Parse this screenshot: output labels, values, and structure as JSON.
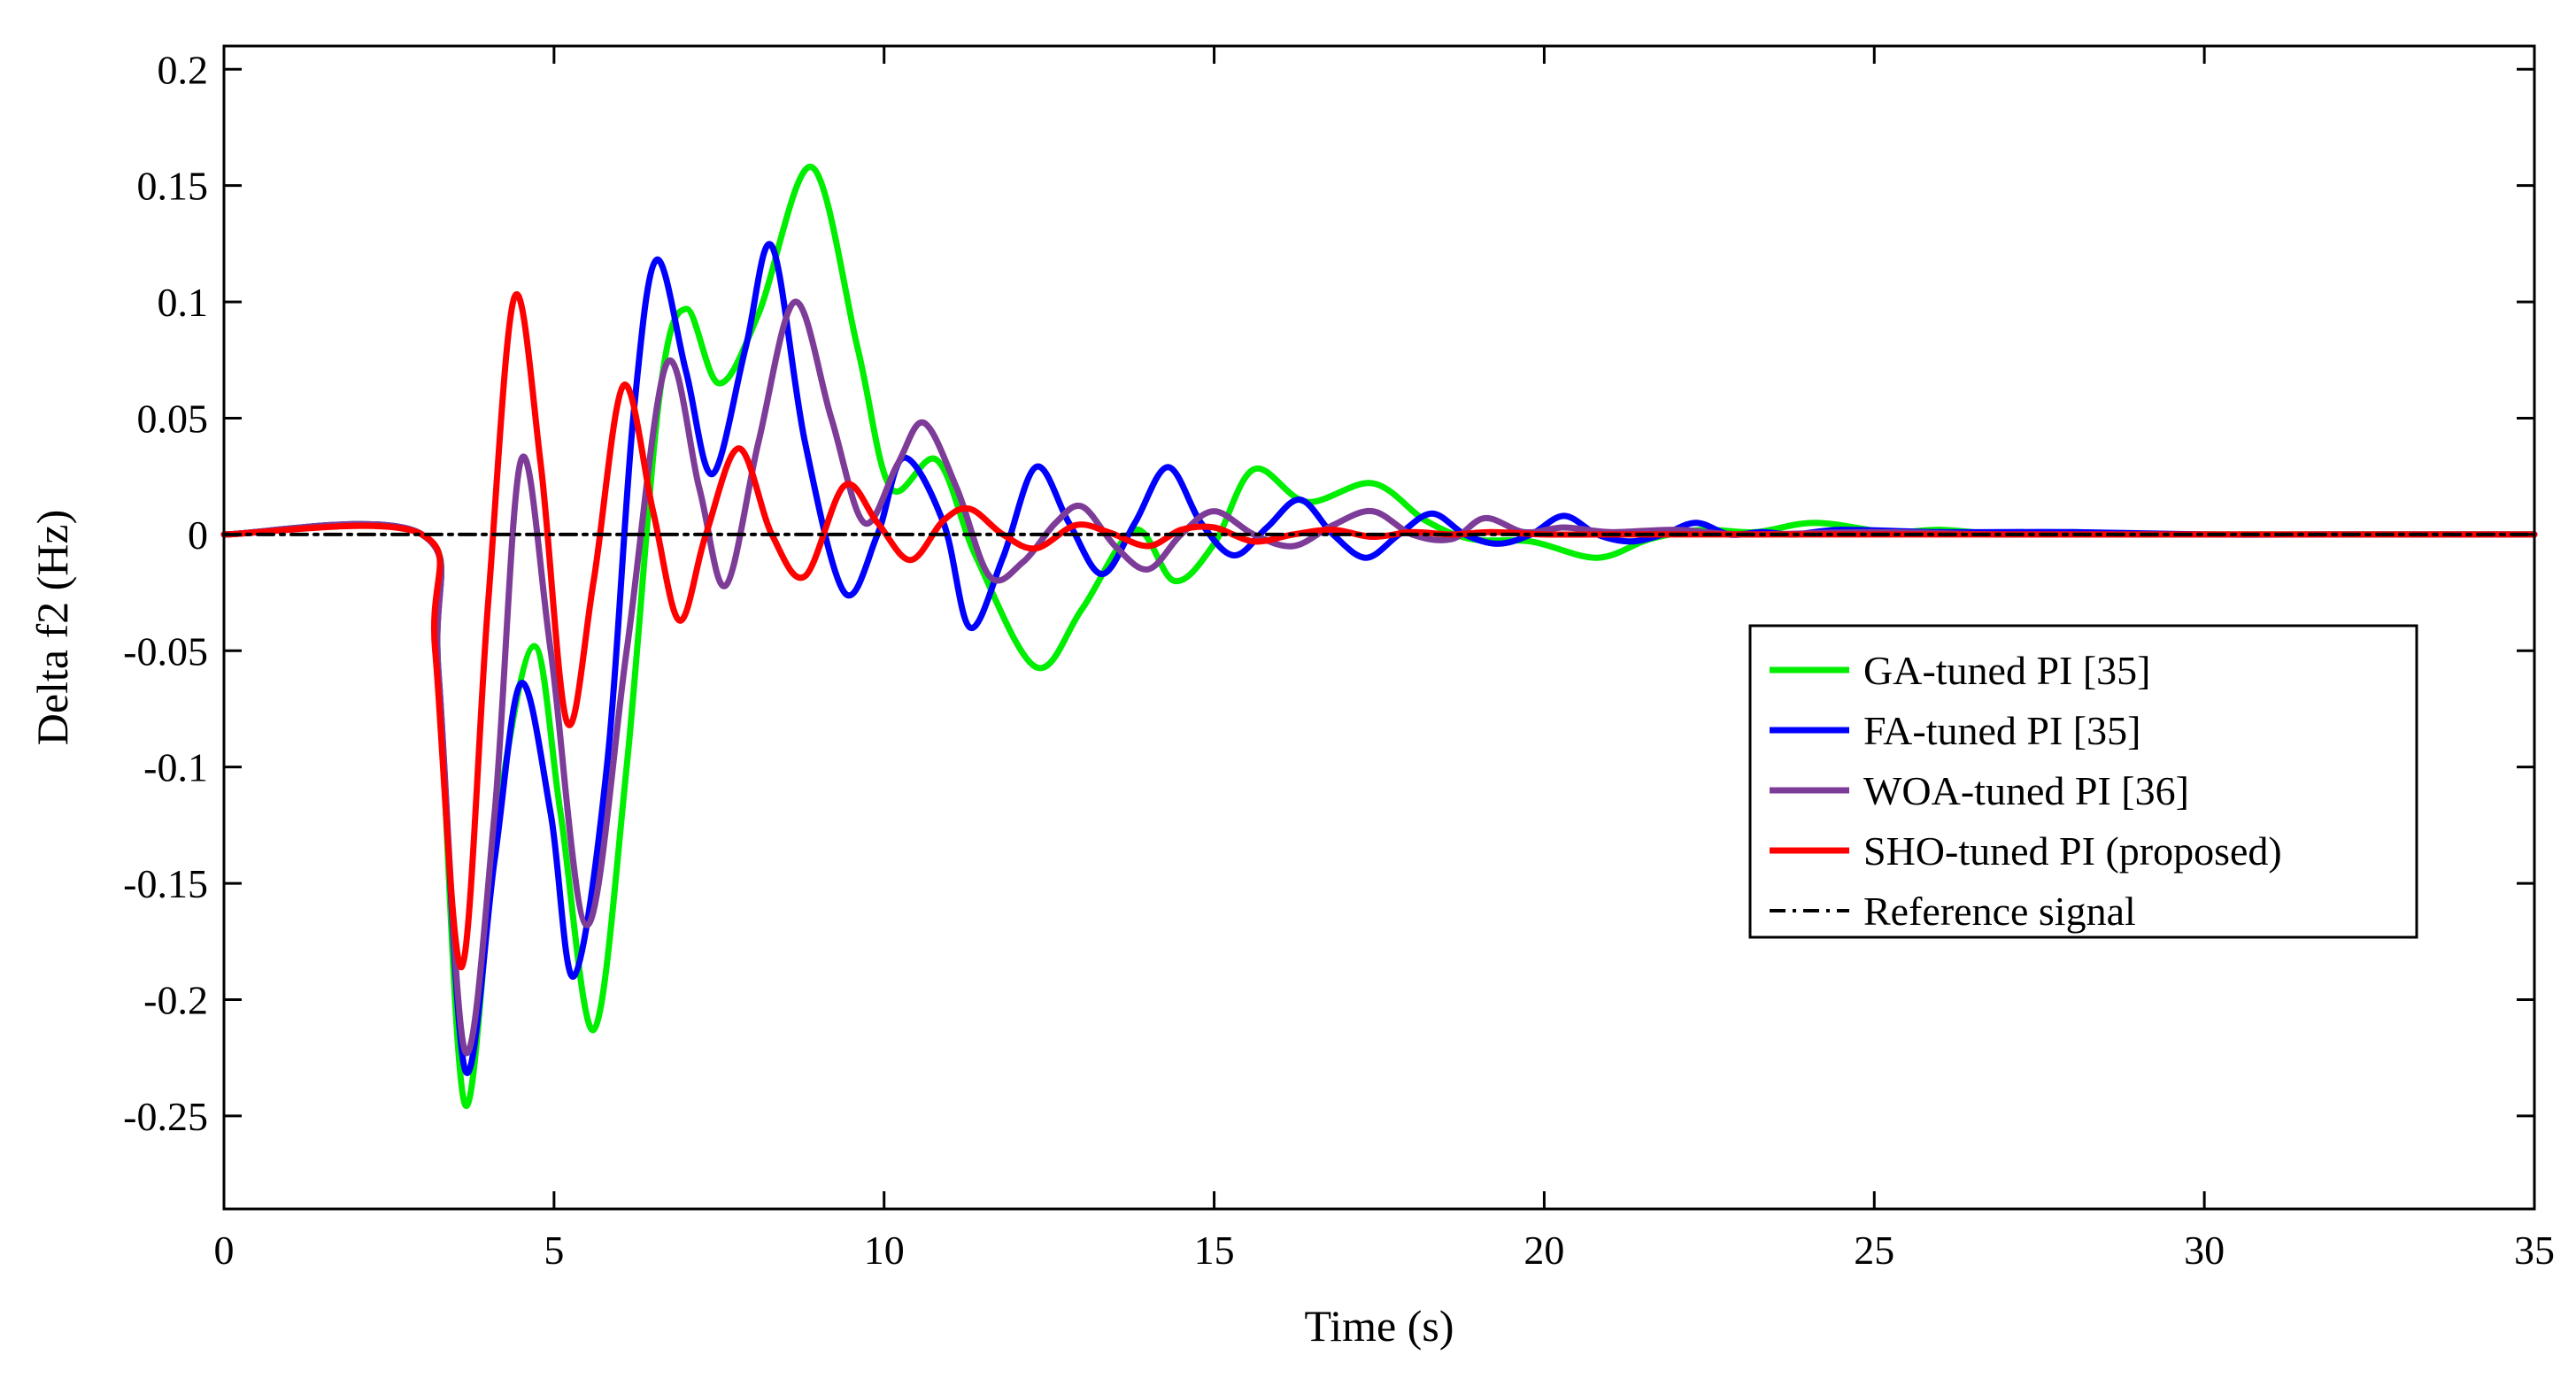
{
  "chart_data": {
    "type": "line",
    "title": "",
    "xlabel": "Time (s)",
    "ylabel": "Delta f2 (Hz)",
    "xlim": [
      0,
      35
    ],
    "ylim": [
      -0.29,
      0.21
    ],
    "xticks": [
      0,
      5,
      10,
      15,
      20,
      25,
      30,
      35
    ],
    "xtick_labels": [
      "0",
      "5",
      "10",
      "15",
      "20",
      "25",
      "30",
      "35"
    ],
    "yticks": [
      0.2,
      0.15,
      0.1,
      0.05,
      0,
      -0.05,
      -0.1,
      -0.15,
      -0.2,
      -0.25
    ],
    "ytick_labels": [
      "0.2",
      "0.15",
      "0.1",
      "0.05",
      "0",
      "-0.05",
      "-0.1",
      "-0.15",
      "-0.2",
      "-0.25"
    ],
    "grid": false,
    "legend_position": "right",
    "series": [
      {
        "name": "GA-tuned PI [35]",
        "color": "#00ee00",
        "style": "solid",
        "x": [
          0,
          3.0,
          3.25,
          3.65,
          4.15,
          4.7,
          5.1,
          5.6,
          6.1,
          6.6,
          7.0,
          7.5,
          8.1,
          8.9,
          9.6,
          10.1,
          10.8,
          11.4,
          12.3,
          13.0,
          13.8,
          14.4,
          15.0,
          15.6,
          16.4,
          17.4,
          18.2,
          18.9,
          19.8,
          20.8,
          21.6,
          22.4,
          23.2,
          24.1,
          25.2,
          26.0,
          27.0,
          28.0,
          29.0,
          30.0,
          31.0,
          32.0,
          33.0,
          34.0,
          35.0
        ],
        "y": [
          0,
          0,
          -0.06,
          -0.245,
          -0.12,
          -0.048,
          -0.12,
          -0.213,
          -0.1,
          0.06,
          0.097,
          0.065,
          0.095,
          0.158,
          0.08,
          0.02,
          0.032,
          -0.01,
          -0.057,
          -0.032,
          0.002,
          -0.02,
          -0.004,
          0.028,
          0.014,
          0.022,
          0.006,
          -0.002,
          -0.003,
          -0.01,
          -0.002,
          0.002,
          0.001,
          0.005,
          0.001,
          0.002,
          0.0,
          0.001,
          0.0,
          0.0,
          0.0,
          0.0,
          0.0,
          0.0,
          0.0
        ]
      },
      {
        "name": "FA-tuned PI [35]",
        "color": "#0000ff",
        "style": "solid",
        "x": [
          0,
          3.0,
          3.25,
          3.65,
          4.1,
          4.5,
          4.95,
          5.3,
          5.8,
          6.2,
          6.55,
          7.0,
          7.4,
          7.9,
          8.3,
          8.8,
          9.4,
          9.9,
          10.3,
          10.9,
          11.3,
          11.8,
          12.3,
          12.8,
          13.3,
          13.8,
          14.3,
          14.8,
          15.3,
          15.8,
          16.3,
          16.8,
          17.3,
          17.8,
          18.3,
          18.8,
          19.3,
          19.8,
          20.3,
          20.8,
          21.3,
          21.8,
          22.3,
          22.8,
          23.3,
          23.8,
          24.5,
          26.0,
          28.0,
          30.0,
          32.0,
          35.0
        ],
        "y": [
          0,
          0,
          -0.06,
          -0.23,
          -0.14,
          -0.064,
          -0.12,
          -0.19,
          -0.1,
          0.05,
          0.118,
          0.07,
          0.026,
          0.08,
          0.124,
          0.04,
          -0.025,
          0.0,
          0.033,
          0.005,
          -0.04,
          -0.01,
          0.029,
          0.005,
          -0.017,
          0.005,
          0.029,
          0.005,
          -0.009,
          0.003,
          0.015,
          0.0,
          -0.01,
          0.0,
          0.009,
          0.0,
          -0.004,
          0.0,
          0.008,
          0.0,
          -0.003,
          0.0,
          0.005,
          0.0,
          0.001,
          0.0,
          0.002,
          0.001,
          0.001,
          0.0,
          0.0,
          0.0
        ]
      },
      {
        "name": "WOA-tuned PI [36]",
        "color": "#7d3c98",
        "style": "solid",
        "x": [
          0,
          3.0,
          3.25,
          3.65,
          4.1,
          4.5,
          4.95,
          5.5,
          6.1,
          6.7,
          7.2,
          7.6,
          8.1,
          8.65,
          9.2,
          9.7,
          10.2,
          10.6,
          11.1,
          11.6,
          12.1,
          12.6,
          13.0,
          13.5,
          14.0,
          14.5,
          15.0,
          15.6,
          16.2,
          16.8,
          17.4,
          18.0,
          18.6,
          19.1,
          19.7,
          20.3,
          21.0,
          22.0,
          23.0,
          25.0,
          27.0,
          30.0,
          35.0
        ],
        "y": [
          0,
          0,
          -0.06,
          -0.222,
          -0.12,
          0.032,
          -0.05,
          -0.168,
          -0.05,
          0.073,
          0.02,
          -0.022,
          0.04,
          0.1,
          0.05,
          0.005,
          0.03,
          0.048,
          0.02,
          -0.018,
          -0.012,
          0.005,
          0.012,
          -0.005,
          -0.015,
          0.0,
          0.01,
          0.0,
          -0.005,
          0.004,
          0.01,
          0.0,
          -0.002,
          0.007,
          0.001,
          0.003,
          0.001,
          0.002,
          0.0,
          0.001,
          0.0,
          0.0,
          0.0
        ]
      },
      {
        "name": "SHO-tuned PI (proposed)",
        "color": "#ff0000",
        "style": "solid",
        "x": [
          0,
          3.0,
          3.2,
          3.6,
          4.0,
          4.4,
          4.8,
          5.2,
          5.6,
          6.05,
          6.5,
          6.9,
          7.3,
          7.8,
          8.3,
          8.8,
          9.4,
          9.9,
          10.4,
          10.9,
          11.3,
          11.8,
          12.3,
          12.9,
          13.4,
          14.0,
          14.5,
          15.0,
          15.6,
          16.2,
          16.8,
          17.4,
          18.0,
          18.6,
          19.2,
          20.0,
          21.0,
          22.0,
          24.0,
          27.0,
          30.0,
          35.0
        ],
        "y": [
          0,
          0,
          -0.05,
          -0.186,
          -0.03,
          0.102,
          0.03,
          -0.081,
          -0.02,
          0.064,
          0.01,
          -0.037,
          0.0,
          0.037,
          0.0,
          -0.018,
          0.021,
          0.005,
          -0.011,
          0.006,
          0.011,
          0.0,
          -0.006,
          0.004,
          0.001,
          -0.005,
          0.002,
          0.003,
          -0.003,
          0.0,
          0.002,
          -0.001,
          0.001,
          0.0,
          0.001,
          0.0,
          0.0,
          0.0,
          0.0,
          0.0,
          0.0,
          0.0
        ]
      },
      {
        "name": "Reference signal",
        "color": "#000000",
        "style": "dashdot",
        "x": [
          0,
          35
        ],
        "y": [
          0,
          0
        ]
      }
    ]
  }
}
